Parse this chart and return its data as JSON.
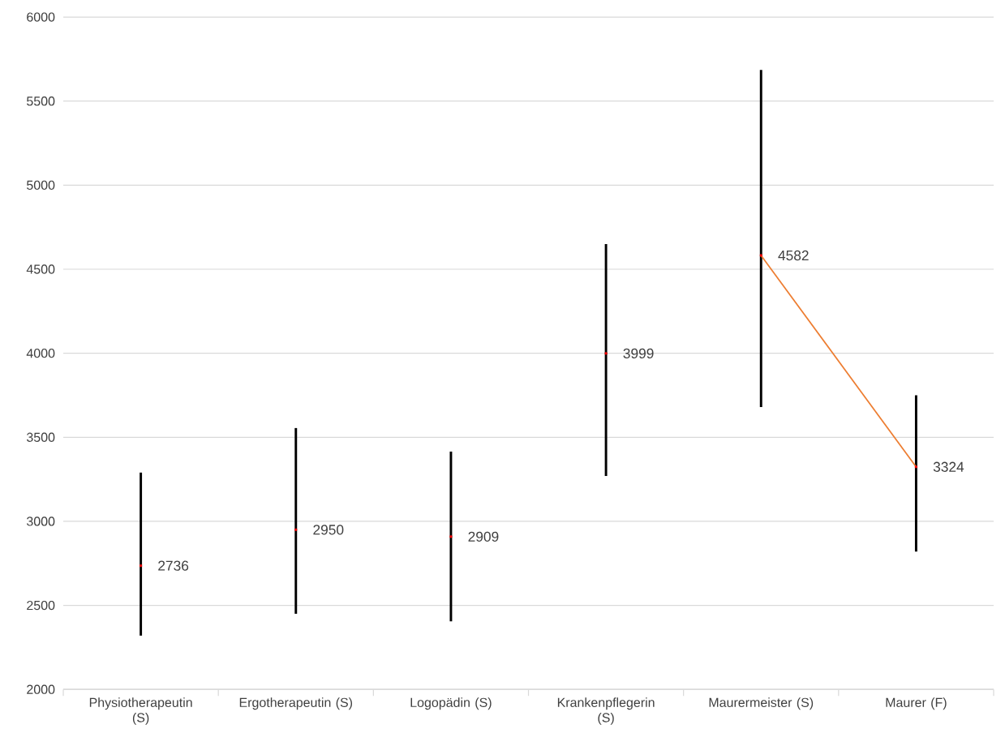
{
  "chart_data": {
    "type": "bar",
    "categories": [
      "Physiotherapeutin (S)",
      "Ergotherapeutin (S)",
      "Logopädin (S)",
      "Krankenpflegerin (S)",
      "Maurermeister (S)",
      "Maurer (F)"
    ],
    "ylim": [
      2000,
      6000
    ],
    "yticks": [
      2000,
      2500,
      3000,
      3500,
      4000,
      4500,
      5000,
      5500,
      6000
    ],
    "grid": "y",
    "series": [
      {
        "color": "#000000",
        "base": [
          2320,
          2450,
          2405,
          3270,
          3680,
          2820
        ],
        "values": [
          970,
          1105,
          1010,
          1380,
          2005,
          930
        ]
      },
      {
        "type": "scatter",
        "marker": "square",
        "color": "#ff0000",
        "values": [
          2736,
          2950,
          2909,
          3999,
          4582,
          3324
        ],
        "value_labels": [
          "2736",
          "2950",
          "2909",
          "3999",
          "4582",
          "3324"
        ]
      },
      {
        "type": "line",
        "color": "#ed7d31",
        "values": [
          null,
          null,
          null,
          null,
          4582,
          3324
        ]
      }
    ]
  }
}
